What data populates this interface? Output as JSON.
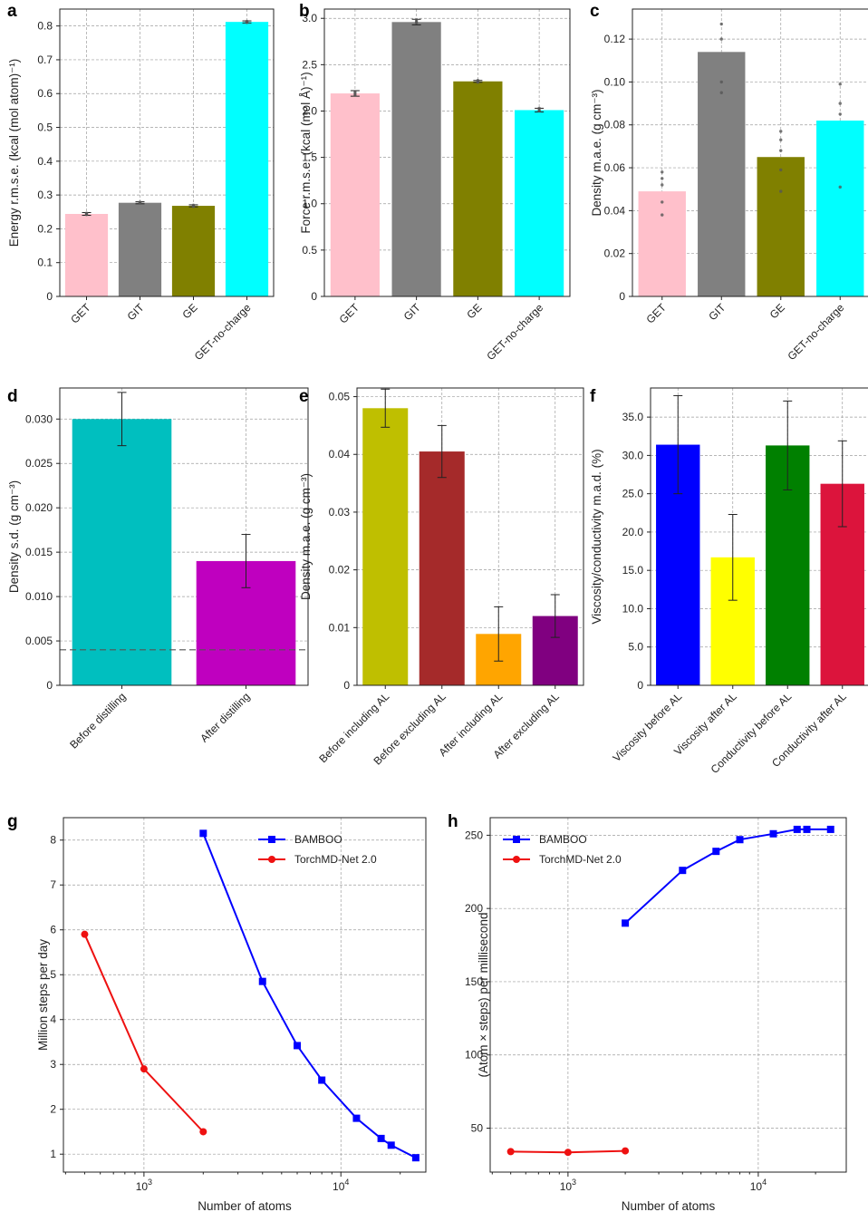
{
  "colors": {
    "pink": "#ffc0cb",
    "gray": "#808080",
    "olive": "#808000",
    "cyan": "#00ffff",
    "teal": "#00bfbf",
    "magenta": "#bf00bf",
    "yellowgreen": "#bfbf00",
    "brown": "#a52a2a",
    "orange": "#ffa500",
    "purple": "#800080",
    "blue": "#0000ff",
    "yellow": "#ffff00",
    "green": "#008000",
    "crimson": "#dc143c",
    "red": "#ee1111"
  },
  "chart_data": [
    {
      "id": "a",
      "letter": "a",
      "type": "bar",
      "categories": [
        "GET",
        "GIT",
        "GE",
        "GET-no-charge"
      ],
      "values": [
        0.244,
        0.277,
        0.268,
        0.812
      ],
      "errors": [
        0.004,
        0.003,
        0.003,
        0.003
      ],
      "points": [
        [
          0.246,
          0.244,
          0.242
        ],
        [
          0.279,
          0.277,
          0.276
        ],
        [
          0.27,
          0.268,
          0.266
        ],
        [
          0.814,
          0.812,
          0.81
        ]
      ],
      "colors": [
        "pink",
        "gray",
        "olive",
        "cyan"
      ],
      "ylabel": "Energy r.m.s.e. (kcal (mol atom)⁻¹)",
      "ylim": [
        0,
        0.85
      ],
      "yticks": [
        0,
        0.1,
        0.2,
        0.3,
        0.4,
        0.5,
        0.6,
        0.7,
        0.8
      ],
      "ytick_labels": [
        "0",
        "0.1",
        "0.2",
        "0.3",
        "0.4",
        "0.5",
        "0.6",
        "0.7",
        "0.8"
      ],
      "xtick_rotation": 45
    },
    {
      "id": "b",
      "letter": "b",
      "type": "bar",
      "categories": [
        "GET",
        "GIT",
        "GE",
        "GET-no-charge"
      ],
      "values": [
        2.19,
        2.96,
        2.32,
        2.01
      ],
      "errors": [
        0.03,
        0.03,
        0.01,
        0.02
      ],
      "points": [
        [
          2.21,
          2.19,
          2.17
        ],
        [
          2.98,
          2.96,
          2.95
        ],
        [
          2.33,
          2.32,
          2.31
        ],
        [
          2.03,
          2.01,
          2.0
        ]
      ],
      "colors": [
        "pink",
        "gray",
        "olive",
        "cyan"
      ],
      "ylabel": "Force r.m.s.e. (kcal (mol Å)⁻¹)",
      "ylim": [
        0,
        3.1
      ],
      "yticks": [
        0,
        0.5,
        1.0,
        1.5,
        2.0,
        2.5,
        3.0
      ],
      "ytick_labels": [
        "0",
        "0.5",
        "1.0",
        "1.5",
        "2.0",
        "2.5",
        "3.0"
      ],
      "xtick_rotation": 45
    },
    {
      "id": "c",
      "letter": "c",
      "type": "bar",
      "categories": [
        "GET",
        "GIT",
        "GE",
        "GET-no-charge"
      ],
      "values": [
        0.049,
        0.114,
        0.065,
        0.082
      ],
      "errors": [
        0,
        0,
        0,
        0
      ],
      "points": [
        [
          0.058,
          0.055,
          0.052,
          0.044,
          0.038
        ],
        [
          0.127,
          0.12,
          0.1,
          0.095
        ],
        [
          0.077,
          0.073,
          0.068,
          0.059,
          0.049
        ],
        [
          0.099,
          0.09,
          0.085,
          0.051
        ]
      ],
      "colors": [
        "pink",
        "gray",
        "olive",
        "cyan"
      ],
      "ylabel": "Density m.a.e. (g cm⁻³)",
      "ylim": [
        0,
        0.134
      ],
      "yticks": [
        0,
        0.02,
        0.04,
        0.06,
        0.08,
        0.1,
        0.12
      ],
      "ytick_labels": [
        "0",
        "0.02",
        "0.04",
        "0.06",
        "0.08",
        "0.10",
        "0.12"
      ],
      "xtick_rotation": 45
    },
    {
      "id": "d",
      "letter": "d",
      "type": "bar",
      "categories": [
        "Before distilling",
        "After distilling"
      ],
      "values": [
        0.03,
        0.014
      ],
      "errors": [
        0.003,
        0.003
      ],
      "points": [],
      "colors": [
        "teal",
        "magenta"
      ],
      "ylabel": "Density s.d. (g cm⁻³)",
      "ylim": [
        0,
        0.0335
      ],
      "yticks": [
        0,
        0.005,
        0.01,
        0.015,
        0.02,
        0.025,
        0.03
      ],
      "ytick_labels": [
        "0",
        "0.005",
        "0.010",
        "0.015",
        "0.020",
        "0.025",
        "0.030"
      ],
      "hline": 0.004,
      "xtick_rotation": 45
    },
    {
      "id": "e",
      "letter": "e",
      "type": "bar",
      "categories": [
        "Before including AL",
        "Before excluding AL",
        "After including AL",
        "After excluding AL"
      ],
      "values": [
        0.048,
        0.0405,
        0.0089,
        0.012
      ],
      "errors": [
        0.0033,
        0.0045,
        0.0047,
        0.0037
      ],
      "points": [],
      "colors": [
        "yellowgreen",
        "brown",
        "orange",
        "purple"
      ],
      "ylabel": "Density m.a.e. (g cm⁻³)",
      "ylim": [
        0,
        0.0515
      ],
      "yticks": [
        0,
        0.01,
        0.02,
        0.03,
        0.04,
        0.05
      ],
      "ytick_labels": [
        "0",
        "0.01",
        "0.02",
        "0.03",
        "0.04",
        "0.05"
      ],
      "xtick_rotation": 45
    },
    {
      "id": "f",
      "letter": "f",
      "type": "bar",
      "categories": [
        "Viscosity before AL",
        "Viscosity after AL",
        "Conductivity before AL",
        "Conductivity after AL"
      ],
      "values": [
        31.4,
        16.7,
        31.3,
        26.3
      ],
      "errors": [
        6.4,
        5.6,
        5.8,
        5.6
      ],
      "points": [],
      "colors": [
        "blue",
        "yellow",
        "green",
        "crimson"
      ],
      "ylabel": "Viscosity/conductivity m.a.d. (%)",
      "ylim": [
        0,
        38.8
      ],
      "yticks": [
        0,
        5,
        10,
        15,
        20,
        25,
        30,
        35
      ],
      "ytick_labels": [
        "0",
        "5.0",
        "10.0",
        "15.0",
        "20.0",
        "25.0",
        "30.0",
        "35.0"
      ],
      "xtick_rotation": 45
    },
    {
      "id": "g",
      "letter": "g",
      "type": "line",
      "xscale": "log",
      "xlabel": "Number of atoms",
      "ylabel": "Million steps per day",
      "xlim": [
        390,
        27000
      ],
      "ylim": [
        0.6,
        8.5
      ],
      "yticks": [
        1,
        2,
        3,
        4,
        5,
        6,
        7,
        8
      ],
      "ytick_labels": [
        "1",
        "2",
        "3",
        "4",
        "5",
        "6",
        "7",
        "8"
      ],
      "legend_position": "top-right",
      "series": [
        {
          "name": "BAMBOO",
          "color": "blue",
          "marker": "square",
          "x": [
            2000,
            4000,
            6000,
            8000,
            12000,
            16000,
            18000,
            24000
          ],
          "y": [
            8.15,
            4.85,
            3.42,
            2.65,
            1.8,
            1.35,
            1.2,
            0.92
          ]
        },
        {
          "name": "TorchMD-Net 2.0",
          "color": "red",
          "marker": "circle",
          "x": [
            500,
            1000,
            2000
          ],
          "y": [
            5.9,
            2.9,
            1.5
          ]
        }
      ]
    },
    {
      "id": "h",
      "letter": "h",
      "type": "line",
      "xscale": "log",
      "xlabel": "Number of atoms",
      "ylabel": "(Atom × steps) per millisecond",
      "xlim": [
        390,
        29000
      ],
      "ylim": [
        20,
        262
      ],
      "yticks": [
        50,
        100,
        150,
        200,
        250
      ],
      "ytick_labels": [
        "50",
        "100",
        "150",
        "200",
        "250"
      ],
      "legend_position": "top-left",
      "series": [
        {
          "name": "BAMBOO",
          "color": "blue",
          "marker": "square",
          "x": [
            2000,
            4000,
            6000,
            8000,
            12000,
            16000,
            18000,
            24000
          ],
          "y": [
            190,
            226,
            239,
            247,
            251,
            254,
            254,
            254
          ]
        },
        {
          "name": "TorchMD-Net 2.0",
          "color": "red",
          "marker": "circle",
          "x": [
            500,
            1000,
            2000
          ],
          "y": [
            34,
            33.5,
            34.5
          ]
        }
      ]
    }
  ],
  "xtick_log": {
    "base": "10",
    "labels": [
      {
        "exp": "3",
        "value": 1000
      },
      {
        "exp": "4",
        "value": 10000
      }
    ]
  }
}
